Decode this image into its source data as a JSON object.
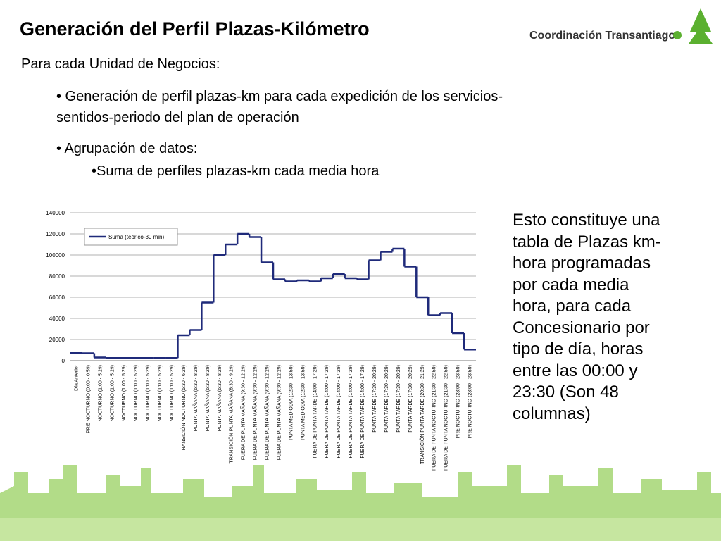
{
  "title": "Generación del Perfil Plazas-Kilómetro",
  "logo": "Coordinación Transantiago",
  "subtitle": "Para cada Unidad de Negocios:",
  "bullets": [
    "• Generación de perfil plazas-km para cada expedición de los servicios-",
    "sentidos-periodo del plan de operación",
    "• Agrupación de datos:"
  ],
  "sub_bullet": "•Suma de perfiles plazas-km cada media hora",
  "side_text": [
    "Esto constituye una",
    "tabla de Plazas km-",
    "hora programadas",
    "por cada media",
    "hora, para cada",
    "Concesionario por",
    "tipo de día, horas",
    "entre las 00:00 y",
    "23:30 (Son 48",
    "columnas)"
  ],
  "chart_data": {
    "type": "line",
    "step": true,
    "categories": [
      "Día Anterior",
      "PRE NOCTURNO (0:00 - 0:59)",
      "NOCTURNO (1:00 - 5:29)",
      "NOCTURNO (1:00 - 5:29)",
      "NOCTURNO (1:00 - 5:29)",
      "NOCTURNO (1:00 - 5:29)",
      "NOCTURNO (1:00 - 5:29)",
      "NOCTURNO (1:00 - 5:29)",
      "NOCTURNO (1:00 - 5:29)",
      "TRANSICIÓN NOCTURNO (5:30 - 6:29)",
      "PUNTA MAÑANA (6:30 - 8:29)",
      "PUNTA MAÑANA (6:30 - 8:29)",
      "PUNTA MAÑANA (6:30 - 8:29)",
      "TRANSICIÓN PUNTA MAÑANA (8:30 - 9:29)",
      "FUERA DE PUNTA MAÑANA (9:30 - 12:29)",
      "FUERA DE PUNTA MAÑANA (9:30 - 12:29)",
      "FUERA DE PUNTA MAÑANA (9:30 - 12:29)",
      "FUERA DE PUNTA MAÑANA (9:30 - 12:29)",
      "PUNTA MEDIODIA (12:30 - 13:59)",
      "PUNTA MEDIODIA (12:30 - 13:59)",
      "FUERA DE PUNTA TARDE (14:00 - 17:29)",
      "FUERA DE PUNTA TARDE (14:00 - 17:29)",
      "FUERA DE PUNTA TARDE (14:00 - 17:29)",
      "FUERA DE PUNTA TARDE (14:00 - 17:29)",
      "FUERA DE PUNTA TARDE (14:00 - 17:29)",
      "PUNTA TARDE (17:30 - 20:29)",
      "PUNTA TARDE (17:30 - 20:29)",
      "PUNTA TARDE (17:30 - 20:29)",
      "PUNTA TARDE (17:30 - 20:29)",
      "TRANSICIÓN PUNTA TARDE (20:30 - 21:29)",
      "FUERA DE PUNTA NOCTURNO (21:30 - 22:59)",
      "FUERA DE PUNTA NOCTURNO (21:30 - 22:59)",
      "PRE NOCTURNO (23:00 - 23:59)",
      "PRE NOCTURNO (23:00 - 23:59)"
    ],
    "series": [
      {
        "name": "Suma (teórico-30 min)",
        "color": "#1f2a7a",
        "values": [
          7500,
          7000,
          3000,
          2500,
          2500,
          2500,
          2500,
          2500,
          2500,
          24000,
          29000,
          55000,
          100000,
          110000,
          120000,
          117000,
          93000,
          77000,
          75000,
          76000,
          75000,
          78000,
          82000,
          78000,
          77000,
          95000,
          103000,
          106000,
          89000,
          60000,
          43000,
          45000,
          26000,
          10500
        ]
      }
    ],
    "ylim": [
      0,
      140000
    ],
    "yticks": [
      0,
      20000,
      40000,
      60000,
      80000,
      100000,
      120000,
      140000
    ],
    "grid": true,
    "legend": "top-left"
  }
}
